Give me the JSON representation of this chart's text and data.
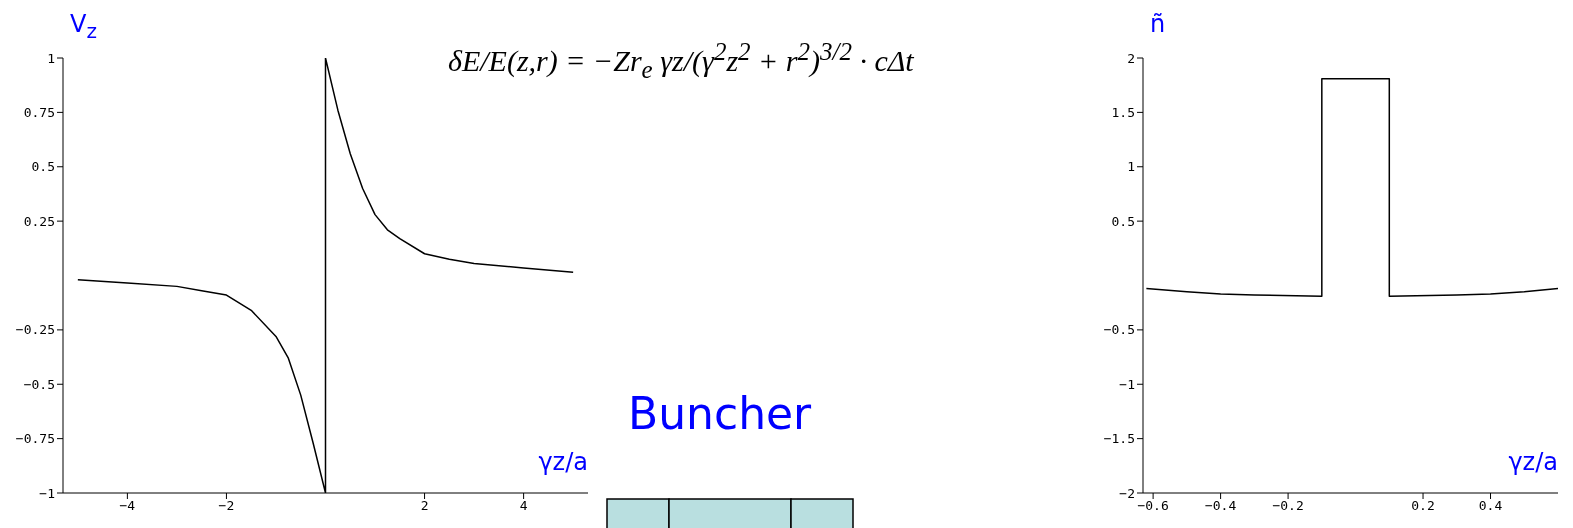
{
  "chart_data": [
    {
      "type": "line",
      "xlabel": "γz/a",
      "ylabel": "V$_{z}$",
      "annotations": [
        "δE/E(z,r) = −Zr$_{e}$ γz/(γ$^{2}$z$^{2}$ + r$^{2}$)$^{3/2}$ · cΔt",
        "Buncher"
      ],
      "x": [
        -5,
        -4,
        -3,
        -2.5,
        -2,
        -1.5,
        -1,
        -0.75,
        -0.5,
        -0.25,
        0,
        0,
        0.25,
        0.5,
        0.75,
        1,
        1.25,
        1.5,
        2,
        2.5,
        3,
        4,
        5
      ],
      "series": [
        {
          "color": "#000000",
          "values": [
            -0.02,
            -0.035,
            -0.05,
            -0.07,
            -0.09,
            -0.16,
            -0.28,
            -0.38,
            -0.55,
            -0.77,
            -1,
            1,
            0.76,
            0.56,
            0.4,
            0.28,
            0.21,
            0.17,
            0.1,
            0.075,
            0.055,
            0.035,
            0.015
          ]
        }
      ],
      "xlim": [
        -5.3,
        5.3
      ],
      "xticks": [
        -4,
        -2,
        2,
        4
      ],
      "ylim": [
        -1,
        1
      ],
      "yticks": [
        -1,
        -0.75,
        -0.5,
        -0.25,
        0.25,
        0.5,
        0.75,
        1
      ]
    },
    {
      "type": "line",
      "xlabel": "γz/a",
      "ylabel": "ñ",
      "x": [
        -0.62,
        -0.5,
        -0.4,
        -0.3,
        -0.1,
        -0.1,
        -0.1,
        0.1,
        0.1,
        0.1,
        0.3,
        0.4,
        0.5,
        0.6
      ],
      "series": [
        {
          "color": "#000000",
          "values": [
            -0.12,
            -0.15,
            -0.17,
            -0.18,
            -0.19,
            0.81,
            1.81,
            1.81,
            0.81,
            -0.19,
            -0.18,
            -0.17,
            -0.15,
            -0.12
          ]
        }
      ],
      "xlim": [
        -0.63,
        0.6
      ],
      "xticks": [
        -0.6,
        -0.4,
        -0.2,
        0.2,
        0.4
      ],
      "ylim": [
        -2,
        2
      ],
      "yticks": [
        -2,
        -1.5,
        -1,
        -0.5,
        0.5,
        1,
        1.5,
        2
      ]
    }
  ]
}
